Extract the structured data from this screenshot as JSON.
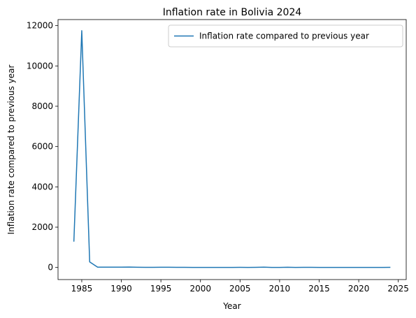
{
  "chart_data": {
    "type": "line",
    "title": "Inflation rate in Bolivia 2024",
    "xlabel": "Year",
    "ylabel": "Inflation rate compared to previous year",
    "xlim": [
      1982,
      2026
    ],
    "ylim": [
      -600,
      12300
    ],
    "xticks": [
      "1985",
      "1990",
      "1995",
      "2000",
      "2005",
      "2010",
      "2015",
      "2020",
      "2025"
    ],
    "yticks": [
      "0",
      "2000",
      "4000",
      "6000",
      "8000",
      "10000",
      "12000"
    ],
    "legend_position": "top-right",
    "grid": false,
    "color": "#1f77b4",
    "series": [
      {
        "name": "Inflation rate compared to previous year",
        "x": [
          1984,
          1985,
          1986,
          1987,
          1988,
          1989,
          1990,
          1991,
          1992,
          1993,
          1994,
          1995,
          1996,
          1997,
          1998,
          1999,
          2000,
          2001,
          2002,
          2003,
          2004,
          2005,
          2006,
          2007,
          2008,
          2009,
          2010,
          2011,
          2012,
          2013,
          2014,
          2015,
          2016,
          2017,
          2018,
          2019,
          2020,
          2021,
          2022,
          2023,
          2024
        ],
        "values": [
          1281,
          11750,
          276,
          14.6,
          16.0,
          15.2,
          17.1,
          21.4,
          12.1,
          8.5,
          7.9,
          10.2,
          12.4,
          4.7,
          7.7,
          2.2,
          4.6,
          1.6,
          0.9,
          3.3,
          4.4,
          5.4,
          4.3,
          8.7,
          14.0,
          3.3,
          2.5,
          9.8,
          4.6,
          5.7,
          5.8,
          4.1,
          3.6,
          2.8,
          2.3,
          1.8,
          0.9,
          0.7,
          1.7,
          2.6,
          5.1
        ]
      }
    ]
  }
}
